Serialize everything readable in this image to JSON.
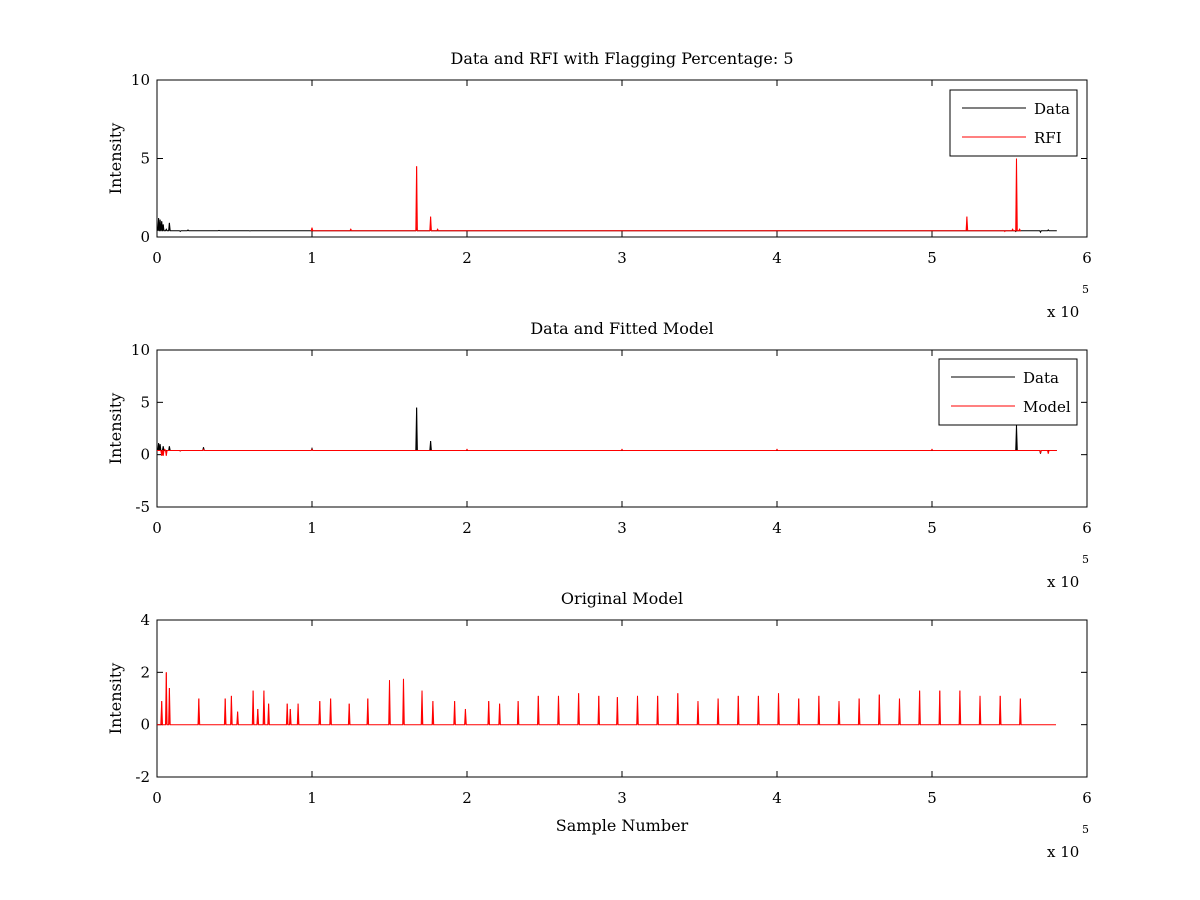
{
  "chart_data": [
    {
      "type": "line",
      "title": "Data and RFI with Flagging Percentage: 5",
      "xlabel": "",
      "ylabel": "Intensity",
      "xlim": [
        0,
        600000
      ],
      "ylim": [
        0,
        10
      ],
      "x_ticks": [
        "0",
        "1",
        "2",
        "3",
        "4",
        "5",
        "6"
      ],
      "y_ticks": [
        "0",
        "5",
        "10"
      ],
      "x_exponent": {
        "base": "x 10",
        "power": "5"
      },
      "grid": false,
      "legend": "top-right",
      "series": [
        {
          "name": "Data",
          "color": "#000000",
          "baseline": 0.4,
          "x": [
            0,
            1000,
            2000,
            3000,
            4000,
            6000,
            8000,
            10000,
            15000,
            20000,
            30000,
            40000,
            60000,
            100000,
            166000,
            167500,
            169000,
            176500,
            178000,
            200000,
            300000,
            400000,
            500000,
            522000,
            554000,
            570000,
            575000,
            580000
          ],
          "y": [
            0.6,
            1.2,
            1.1,
            1.0,
            0.8,
            0.5,
            0.9,
            0.4,
            0.35,
            0.45,
            0.4,
            0.42,
            0.38,
            0.4,
            0.4,
            0.6,
            0.4,
            0.5,
            0.4,
            0.4,
            0.4,
            0.4,
            0.4,
            0.4,
            0.35,
            0.3,
            0.45,
            0.4
          ]
        },
        {
          "name": "RFI",
          "color": "#ff0000",
          "baseline": 0.4,
          "x": [
            100000,
            125000,
            167500,
            176500,
            181000,
            522500,
            537000,
            547000,
            552000,
            554500,
            556500
          ],
          "y": [
            0.6,
            0.5,
            4.5,
            1.3,
            0.5,
            1.3,
            0.4,
            0.35,
            0.5,
            5.0,
            0.5
          ]
        }
      ]
    },
    {
      "type": "line",
      "title": "Data and Fitted Model",
      "xlabel": "",
      "ylabel": "Intensity",
      "xlim": [
        0,
        600000
      ],
      "ylim": [
        -5,
        10
      ],
      "x_ticks": [
        "0",
        "1",
        "2",
        "3",
        "4",
        "5",
        "6"
      ],
      "y_ticks": [
        "-5",
        "0",
        "5",
        "10"
      ],
      "x_exponent": {
        "base": "x 10",
        "power": "5"
      },
      "grid": false,
      "legend": "top-right",
      "series": [
        {
          "name": "Data",
          "color": "#000000",
          "baseline": 0.4,
          "x": [
            0,
            1000,
            2000,
            4000,
            8000,
            15000,
            30000,
            100000,
            167500,
            176500,
            554500,
            570000,
            580000
          ],
          "y": [
            0.6,
            1.1,
            1.0,
            0.8,
            0.8,
            0.35,
            0.7,
            0.6,
            4.5,
            1.3,
            2.8,
            0.1,
            0.4
          ]
        },
        {
          "name": "Model",
          "color": "#ff0000",
          "baseline": 0.4,
          "x": [
            3000,
            4000,
            5000,
            6000,
            15000,
            30000,
            100000,
            200000,
            300000,
            400000,
            500000,
            570000,
            575000,
            580000
          ],
          "y": [
            -0.1,
            -0.1,
            0.5,
            -0.1,
            0.35,
            0.5,
            0.5,
            0.5,
            0.5,
            0.5,
            0.5,
            0.2,
            0.1,
            0.4
          ]
        }
      ]
    },
    {
      "type": "line",
      "title": "Original Model",
      "xlabel": "Sample Number",
      "ylabel": "Intensity",
      "xlim": [
        0,
        600000
      ],
      "ylim": [
        -2,
        4
      ],
      "x_ticks": [
        "0",
        "1",
        "2",
        "3",
        "4",
        "5",
        "6"
      ],
      "y_ticks": [
        "-2",
        "0",
        "2"
      ],
      "y_ticks_extra": [
        "4"
      ],
      "x_exponent": {
        "base": "x 10",
        "power": "5"
      },
      "grid": false,
      "legend": "none",
      "series": [
        {
          "name": "",
          "color": "#ff0000",
          "baseline": 0,
          "x": [
            3000,
            6000,
            8000,
            27000,
            44000,
            48000,
            52000,
            62000,
            65000,
            69000,
            72000,
            84000,
            86000,
            91000,
            105000,
            112000,
            124000,
            136000,
            150000,
            159000,
            171000,
            178000,
            192000,
            199000,
            214000,
            221000,
            233000,
            246000,
            259000,
            272000,
            285000,
            297000,
            310000,
            323000,
            336000,
            349000,
            362000,
            375000,
            388000,
            401000,
            414000,
            427000,
            440000,
            453000,
            466000,
            479000,
            492000,
            505000,
            518000,
            531000,
            544000,
            557000
          ],
          "y": [
            0.9,
            2.0,
            1.4,
            1.0,
            1.0,
            1.1,
            0.5,
            1.3,
            0.6,
            1.3,
            0.8,
            0.8,
            0.6,
            0.8,
            0.9,
            1.0,
            0.8,
            1.0,
            1.7,
            1.75,
            1.3,
            0.9,
            0.9,
            0.6,
            0.9,
            0.8,
            0.9,
            1.1,
            1.1,
            1.2,
            1.1,
            1.05,
            1.1,
            1.1,
            1.2,
            0.9,
            1.0,
            1.1,
            1.1,
            1.2,
            1.0,
            1.1,
            0.9,
            1.0,
            1.15,
            1.0,
            1.3,
            1.3,
            1.3,
            1.1,
            1.1,
            1.0
          ]
        }
      ]
    }
  ]
}
